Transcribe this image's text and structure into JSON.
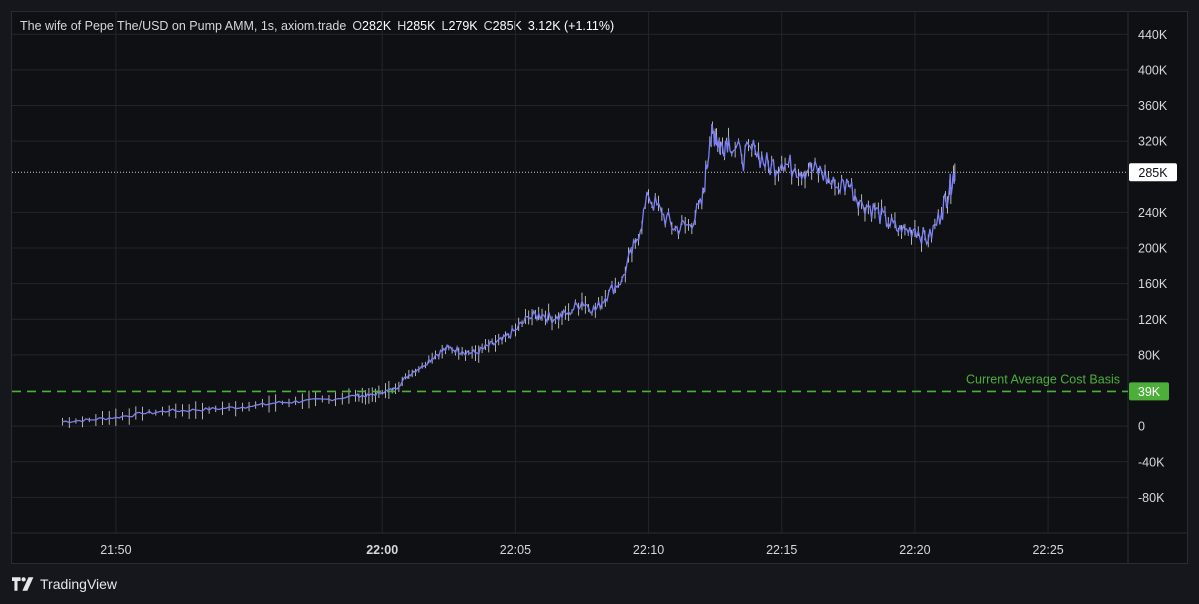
{
  "legend": {
    "symbol": "The wife of Pepe The/USD on Pump AMM, 1s, axiom.trade",
    "open_label": "O",
    "open_value": "282K",
    "high_label": "H",
    "high_value": "285K",
    "low_label": "L",
    "low_value": "279K",
    "close_label": "C",
    "close_value": "285K",
    "change": "3.12K (+1.11%)"
  },
  "footer": {
    "brand": "TradingView"
  },
  "colors": {
    "line": "#7b7ff0",
    "wick": "#ffffff",
    "grid": "#23252c",
    "axis_text": "#d6d7db",
    "cost_basis": "#4caf3a",
    "price_badge_bg": "#ffffff",
    "price_badge_text": "#0f1014"
  },
  "chart_data": {
    "type": "line",
    "y_ticks": [
      "440K",
      "400K",
      "360K",
      "320K",
      "240K",
      "200K",
      "160K",
      "120K",
      "80K",
      "0",
      "-40K",
      "-80K"
    ],
    "y_tick_values": [
      440,
      400,
      360,
      320,
      240,
      200,
      160,
      120,
      80,
      0,
      -40,
      -80
    ],
    "x_ticks": [
      "21:50",
      "22:00",
      "22:05",
      "22:10",
      "22:15",
      "22:20",
      "22:25"
    ],
    "x_tick_minutes": [
      0,
      10,
      15,
      20,
      25,
      30,
      35
    ],
    "x_bold_tick": "22:00",
    "ylim_k": [
      -120,
      465
    ],
    "xlim_minutes": [
      -3.9,
      38
    ],
    "series": [
      {
        "x_minutes": [
          -2,
          -1,
          0,
          1,
          2,
          3,
          4,
          5,
          6,
          7,
          8,
          9,
          9.5,
          10,
          10.5,
          11,
          11.5,
          12,
          12.5,
          13,
          13.5,
          14,
          14.5,
          15,
          15.5,
          16,
          16.5,
          17,
          17.5,
          18,
          18.5,
          19,
          19.5,
          20,
          20.5,
          21,
          21.5,
          22,
          22.3,
          22.5,
          22.7,
          23,
          23.5,
          24,
          24.5,
          25,
          25.5,
          26,
          26.5,
          27,
          27.5,
          28,
          28.5,
          29,
          29.5,
          30,
          30.5,
          31,
          31.3,
          31.5
        ],
        "values_k": [
          5,
          7,
          10,
          14,
          17,
          18,
          20,
          22,
          26,
          28,
          30,
          34,
          34,
          38,
          42,
          58,
          68,
          80,
          88,
          84,
          82,
          90,
          96,
          108,
          122,
          125,
          120,
          128,
          140,
          130,
          150,
          165,
          205,
          258,
          238,
          222,
          226,
          248,
          320,
          330,
          312,
          325,
          300,
          310,
          292,
          295,
          290,
          288,
          285,
          268,
          272,
          252,
          242,
          228,
          218,
          222,
          208,
          240,
          268,
          285
        ]
      }
    ],
    "cost_basis": {
      "label": "Current Average Cost Basis",
      "value_k": 39,
      "badge": "39K"
    },
    "current_price": {
      "value_k": 285,
      "badge": "285K"
    }
  }
}
